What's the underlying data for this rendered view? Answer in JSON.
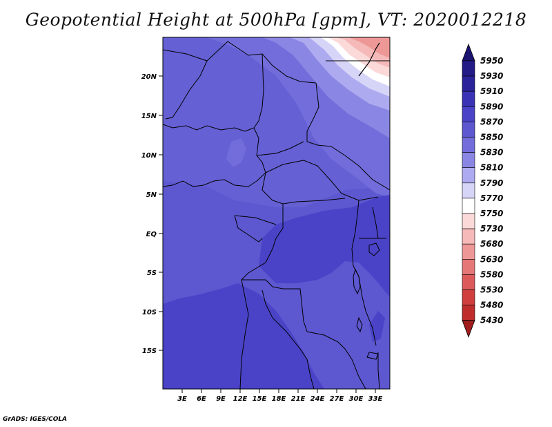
{
  "title": "Geopotential Height at 500hPa [gpm], VT: 2020012218",
  "credit": "GrADS: IGES/COLA",
  "map": {
    "lat_labels": [
      "20N",
      "15N",
      "10N",
      "5N",
      "EQ",
      "5S",
      "10S",
      "15S"
    ],
    "lon_labels": [
      "3E",
      "6E",
      "9E",
      "12E",
      "15E",
      "18E",
      "21E",
      "24E",
      "27E",
      "30E",
      "33E"
    ]
  },
  "colorbar": {
    "levels": [
      "5950",
      "5930",
      "5910",
      "5890",
      "5870",
      "5850",
      "5830",
      "5810",
      "5790",
      "5770",
      "5750",
      "5730",
      "5680",
      "5630",
      "5580",
      "5530",
      "5480",
      "5430"
    ],
    "colors": {
      "top_arrow": "#1c1470",
      "bottom_arrow": "#a11d1d",
      "bands": [
        "#231b86",
        "#2a239a",
        "#3b33b5",
        "#4a43c7",
        "#5d57d0",
        "#726ddb",
        "#8a86e3",
        "#aeaaf0",
        "#d6d5f7",
        "#ffffff",
        "#fbd9d9",
        "#f5b9b9",
        "#ee9797",
        "#e57777",
        "#dc5a5a",
        "#d03e3e",
        "#be2c2c"
      ]
    }
  }
}
